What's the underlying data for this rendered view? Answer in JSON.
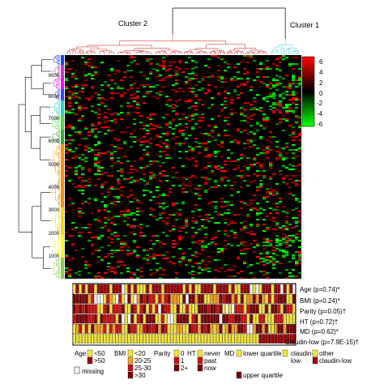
{
  "chart_data": {
    "type": "heatmap",
    "title": "",
    "cluster_labels": [
      "Cluster 2",
      "Cluster 1"
    ],
    "cluster_colors": [
      "#d94040",
      "#66d0e8"
    ],
    "row_ticks": [
      "9000",
      "8000",
      "7000",
      "6000",
      "5000",
      "4000",
      "3000",
      "2000",
      "1000"
    ],
    "colorbar": {
      "ticks": [
        "6",
        "4",
        "2",
        "0",
        "-2",
        "-4",
        "-6"
      ],
      "range": [
        -6,
        6
      ],
      "colors": {
        "high": "#ff0000",
        "mid": "#000000",
        "low": "#00ff00"
      }
    },
    "annotation_rows": [
      "Age (p=0.74)*",
      "BMI (p=0.24)*",
      "Parity (p=0.05)†",
      "HT (p=0.72)†",
      "MD (p=0.62)*",
      "Claudin-low (p=7.9E-15)†"
    ],
    "legend": {
      "age": {
        "title": "Age",
        "items": [
          {
            "label": "<50",
            "color": "#f2e63a"
          },
          {
            "label": ">50",
            "color": "#a00000"
          }
        ]
      },
      "bmi": {
        "title": "BMI",
        "items": [
          {
            "label": "<20",
            "color": "#f2e63a"
          },
          {
            "label": "20-25",
            "color": "#f4a020"
          },
          {
            "label": "25-30",
            "color": "#d01010"
          },
          {
            "label": ">30",
            "color": "#7a0000"
          }
        ]
      },
      "parity": {
        "title": "Parity",
        "items": [
          {
            "label": "0",
            "color": "#f2e63a"
          },
          {
            "label": "1",
            "color": "#d01010"
          },
          {
            "label": "2+",
            "color": "#7a0000"
          }
        ]
      },
      "ht": {
        "title": "HT",
        "items": [
          {
            "label": "never",
            "color": "#f2e63a"
          },
          {
            "label": "past",
            "color": "#d01010"
          },
          {
            "label": "now",
            "color": "#7a0000"
          }
        ]
      },
      "md": {
        "title": "MD",
        "items": [
          {
            "label": "lower quartile",
            "color": "#f2e63a"
          },
          {
            "label": "upper quartile",
            "color": "#7a0000"
          }
        ]
      },
      "claudin": {
        "items": [
          {
            "label": "claudin-",
            "label2": "low",
            "color": "#f2e63a"
          },
          {
            "label": "other",
            "color": "#f2e63a"
          },
          {
            "label": "claudin-low",
            "color": "#a00000"
          }
        ]
      },
      "missing_label": "missing"
    },
    "colors": {
      "row_branches": [
        "#1f3fff",
        "#cc33cc",
        "#ff00ff",
        "#3344ff",
        "#22d4d4",
        "#44dd44",
        "#33aa33",
        "#ff8c00",
        "#ff8c00",
        "#ffd400",
        "#ffff00",
        "#88cc44"
      ],
      "dendrogram_black": "#000000"
    }
  }
}
